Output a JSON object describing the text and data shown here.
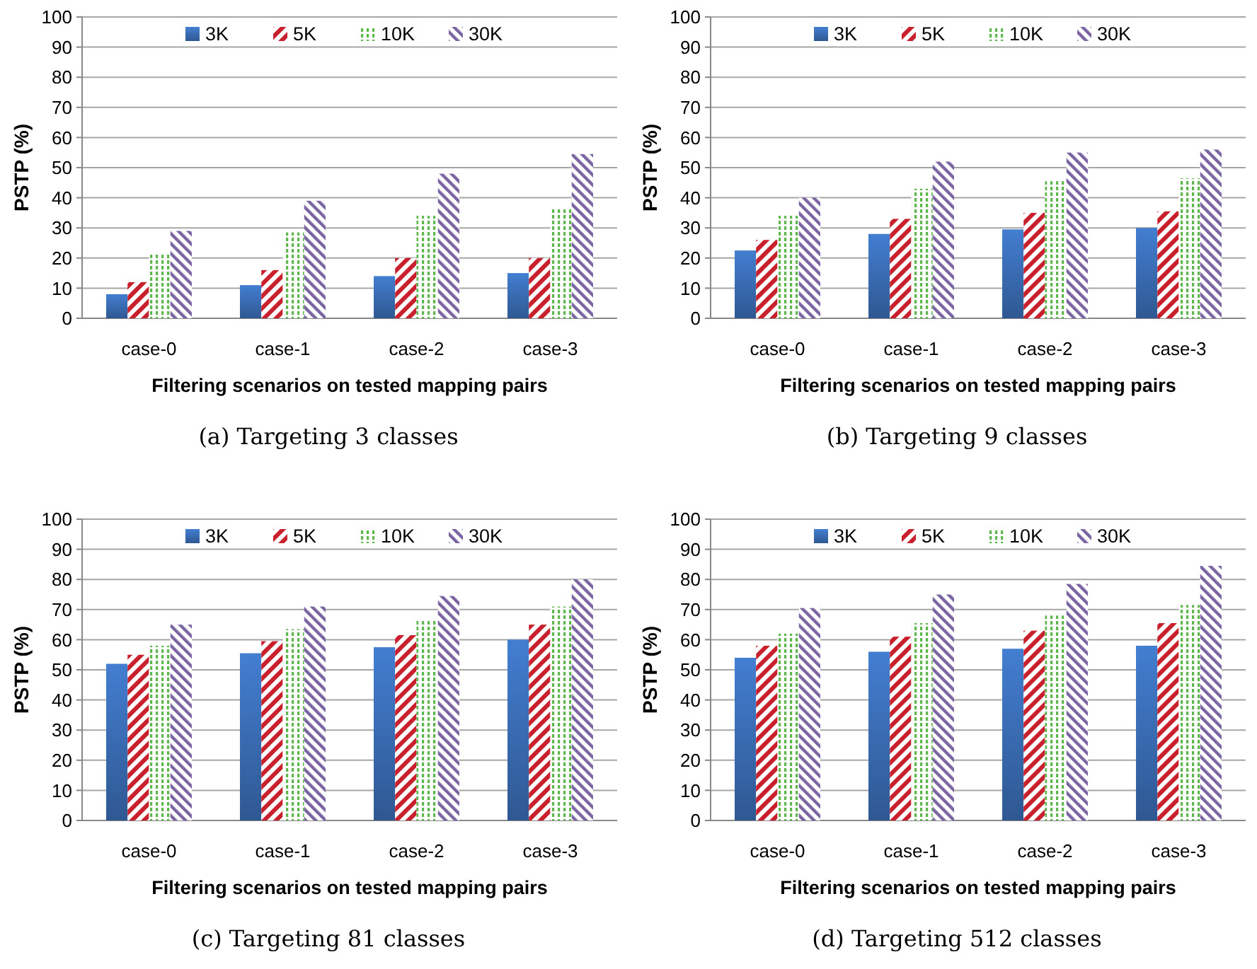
{
  "chart_data": [
    {
      "type": "bar",
      "title": "(a) Targeting 3 classes",
      "xlabel": "Filtering scenarios on tested mapping pairs",
      "ylabel": "PSTP (%)",
      "categories": [
        "case-0",
        "case-1",
        "case-2",
        "case-3"
      ],
      "ylim": [
        0,
        100
      ],
      "yticks": [
        0,
        10,
        20,
        30,
        40,
        50,
        60,
        70,
        80,
        90,
        100
      ],
      "grid": "y",
      "legend": "top",
      "series": [
        {
          "name": "3K",
          "color": "#3a6db5",
          "values": [
            8,
            11,
            14,
            15
          ]
        },
        {
          "name": "5K",
          "color": "#c8202c",
          "values": [
            12,
            16,
            20,
            20
          ]
        },
        {
          "name": "10K",
          "color": "#5cb84a",
          "values": [
            21.5,
            28.5,
            34,
            36.5
          ]
        },
        {
          "name": "30K",
          "color": "#7a64a2",
          "values": [
            29,
            39,
            48,
            54.5
          ]
        }
      ]
    },
    {
      "type": "bar",
      "title": "(b) Targeting 9 classes",
      "xlabel": "Filtering scenarios on tested mapping pairs",
      "ylabel": "PSTP (%)",
      "categories": [
        "case-0",
        "case-1",
        "case-2",
        "case-3"
      ],
      "ylim": [
        0,
        100
      ],
      "yticks": [
        0,
        10,
        20,
        30,
        40,
        50,
        60,
        70,
        80,
        90,
        100
      ],
      "grid": "y",
      "legend": "top",
      "series": [
        {
          "name": "3K",
          "color": "#3a6db5",
          "values": [
            22.5,
            28,
            29.5,
            30
          ]
        },
        {
          "name": "5K",
          "color": "#c8202c",
          "values": [
            26,
            33,
            35,
            35.5
          ]
        },
        {
          "name": "10K",
          "color": "#5cb84a",
          "values": [
            34,
            43,
            45.5,
            46.5
          ]
        },
        {
          "name": "30K",
          "color": "#7a64a2",
          "values": [
            40,
            52,
            55,
            56
          ]
        }
      ]
    },
    {
      "type": "bar",
      "title": "(c) Targeting 81 classes",
      "xlabel": "Filtering scenarios on tested mapping pairs",
      "ylabel": "PSTP (%)",
      "categories": [
        "case-0",
        "case-1",
        "case-2",
        "case-3"
      ],
      "ylim": [
        0,
        100
      ],
      "yticks": [
        0,
        10,
        20,
        30,
        40,
        50,
        60,
        70,
        80,
        90,
        100
      ],
      "grid": "y",
      "legend": "top",
      "series": [
        {
          "name": "3K",
          "color": "#3a6db5",
          "values": [
            52,
            55.5,
            57.5,
            60
          ]
        },
        {
          "name": "5K",
          "color": "#c8202c",
          "values": [
            55,
            59.5,
            61.5,
            65
          ]
        },
        {
          "name": "10K",
          "color": "#5cb84a",
          "values": [
            58,
            63.5,
            66.5,
            71
          ]
        },
        {
          "name": "30K",
          "color": "#7a64a2",
          "values": [
            65,
            71,
            74.5,
            80
          ]
        }
      ]
    },
    {
      "type": "bar",
      "title": "(d) Targeting 512 classes",
      "xlabel": "Filtering scenarios on tested mapping pairs",
      "ylabel": "PSTP (%)",
      "categories": [
        "case-0",
        "case-1",
        "case-2",
        "case-3"
      ],
      "ylim": [
        0,
        100
      ],
      "yticks": [
        0,
        10,
        20,
        30,
        40,
        50,
        60,
        70,
        80,
        90,
        100
      ],
      "grid": "y",
      "legend": "top",
      "series": [
        {
          "name": "3K",
          "color": "#3a6db5",
          "values": [
            54,
            56,
            57,
            58
          ]
        },
        {
          "name": "5K",
          "color": "#c8202c",
          "values": [
            58,
            61,
            63,
            65.5
          ]
        },
        {
          "name": "10K",
          "color": "#5cb84a",
          "values": [
            62,
            65.5,
            68,
            71.5
          ]
        },
        {
          "name": "30K",
          "color": "#7a64a2",
          "values": [
            70.5,
            75,
            78.5,
            84.5
          ]
        }
      ]
    }
  ]
}
